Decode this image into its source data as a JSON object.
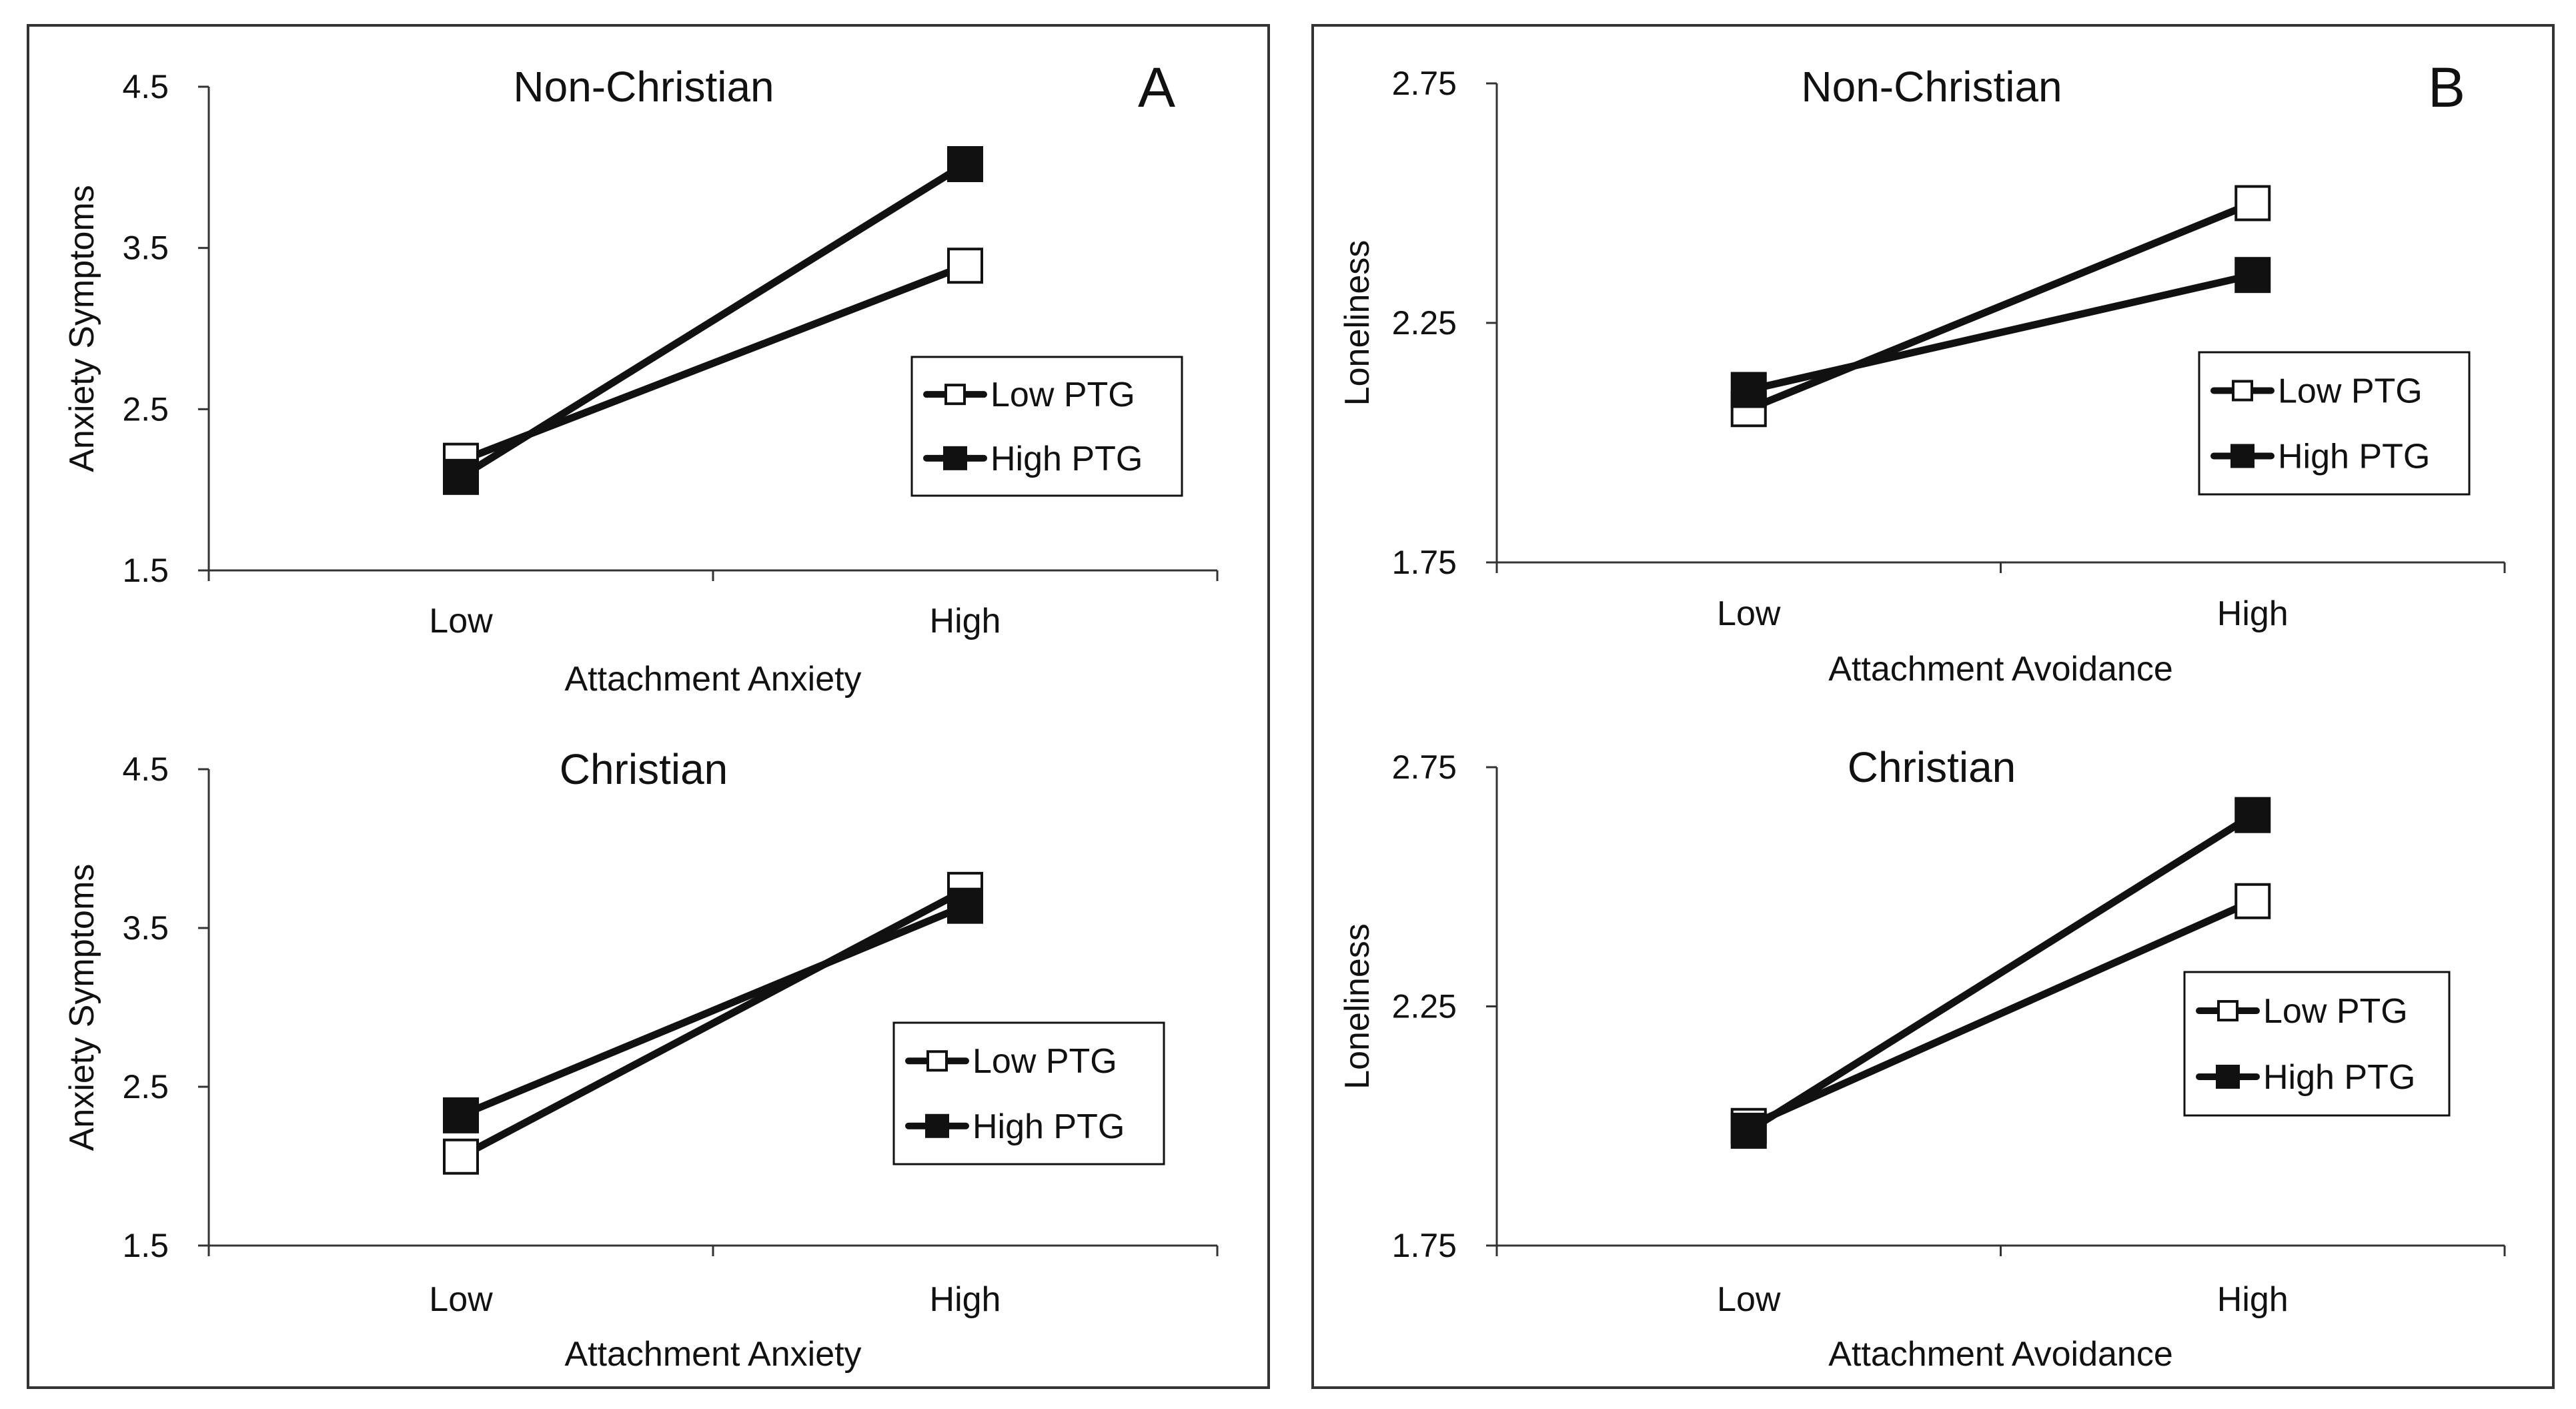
{
  "colors": {
    "line": "#111111",
    "frame": "#333333",
    "open_marker_fill": "#ffffff",
    "filled_marker_fill": "#111111"
  },
  "panels": [
    {
      "letter": "A"
    },
    {
      "letter": "B"
    }
  ],
  "chart_data": [
    {
      "type": "line",
      "panel": "A",
      "title": "Non-Christian",
      "xlabel": "Attachment Anxiety",
      "ylabel": "Anxiety Symptoms",
      "categories": [
        "Low",
        "High"
      ],
      "ylim": [
        1.5,
        4.5
      ],
      "yticks": [
        1.5,
        2.5,
        3.5,
        4.5
      ],
      "ytick_labels": [
        "1.5",
        "2.5",
        "3.5",
        "4.5"
      ],
      "series": [
        {
          "name": "Low PTG",
          "marker": "open-square",
          "values": [
            2.18,
            3.39
          ]
        },
        {
          "name": "High PTG",
          "marker": "filled-square",
          "values": [
            2.08,
            4.02
          ]
        }
      ],
      "legend": {
        "position": "right",
        "entries": [
          "Low PTG",
          "High PTG"
        ]
      }
    },
    {
      "type": "line",
      "panel": "A",
      "title": "Christian",
      "xlabel": "Attachment Anxiety",
      "ylabel": "Anxiety Symptoms",
      "categories": [
        "Low",
        "High"
      ],
      "ylim": [
        1.5,
        4.5
      ],
      "yticks": [
        1.5,
        2.5,
        3.5,
        4.5
      ],
      "ytick_labels": [
        "1.5",
        "2.5",
        "3.5",
        "4.5"
      ],
      "series": [
        {
          "name": "Low PTG",
          "marker": "open-square",
          "values": [
            2.06,
            3.74
          ]
        },
        {
          "name": "High PTG",
          "marker": "filled-square",
          "values": [
            2.32,
            3.64
          ]
        }
      ],
      "legend": {
        "position": "right",
        "entries": [
          "Low PTG",
          "High PTG"
        ]
      }
    },
    {
      "type": "line",
      "panel": "B",
      "title": "Non-Christian",
      "xlabel": "Attachment Avoidance",
      "ylabel": "Loneliness",
      "categories": [
        "Low",
        "High"
      ],
      "ylim": [
        1.75,
        2.75
      ],
      "yticks": [
        1.75,
        2.25,
        2.75
      ],
      "ytick_labels": [
        "1.75",
        "2.25",
        "2.75"
      ],
      "series": [
        {
          "name": "Low PTG",
          "marker": "open-square",
          "values": [
            2.07,
            2.5
          ]
        },
        {
          "name": "High PTG",
          "marker": "filled-square",
          "values": [
            2.11,
            2.35
          ]
        }
      ],
      "legend": {
        "position": "right",
        "entries": [
          "Low PTG",
          "High PTG"
        ]
      }
    },
    {
      "type": "line",
      "panel": "B",
      "title": "Christian",
      "xlabel": "Attachment Avoidance",
      "ylabel": "Loneliness",
      "categories": [
        "Low",
        "High"
      ],
      "ylim": [
        1.75,
        2.75
      ],
      "yticks": [
        1.75,
        2.25,
        2.75
      ],
      "ytick_labels": [
        "1.75",
        "2.25",
        "2.75"
      ],
      "series": [
        {
          "name": "Low PTG",
          "marker": "open-square",
          "values": [
            2.0,
            2.47
          ]
        },
        {
          "name": "High PTG",
          "marker": "filled-square",
          "values": [
            1.99,
            2.65
          ]
        }
      ],
      "legend": {
        "position": "right",
        "entries": [
          "Low PTG",
          "High PTG"
        ]
      }
    }
  ]
}
